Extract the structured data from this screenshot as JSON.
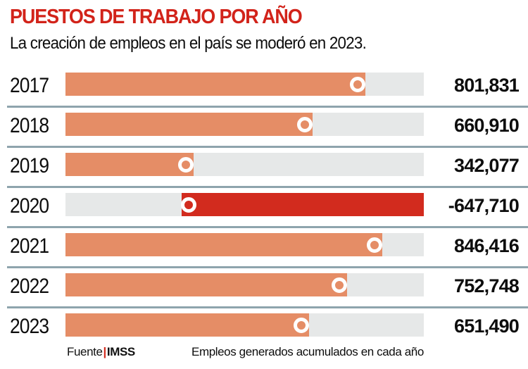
{
  "chart_data": {
    "type": "bar",
    "orientation": "horizontal",
    "title": "PUESTOS DE TRABAJO POR AÑO",
    "subtitle": "La creación de empleos en el país se moderó en 2023.",
    "categories": [
      "2017",
      "2018",
      "2019",
      "2020",
      "2021",
      "2022",
      "2023"
    ],
    "values": [
      801831,
      660910,
      342077,
      -647710,
      846416,
      752748,
      651490
    ],
    "value_labels": [
      "801,831",
      "660,910",
      "342,077",
      "-647,710",
      "846,416",
      "752,748",
      "651,490"
    ],
    "axis_max": 958000,
    "grid": false,
    "legend": false,
    "colors": {
      "title_red": "#d2231a",
      "positive_bar": "#e58d66",
      "negative_bar": "#d22b1e",
      "track": "#e6e8e8",
      "separator": "#8ea4ad",
      "text": "#0d0d0d"
    },
    "source_label": "Fuente",
    "source_pipe": "|",
    "source_value": "IMSS",
    "note": "Empleos generados acumulados en cada año"
  }
}
